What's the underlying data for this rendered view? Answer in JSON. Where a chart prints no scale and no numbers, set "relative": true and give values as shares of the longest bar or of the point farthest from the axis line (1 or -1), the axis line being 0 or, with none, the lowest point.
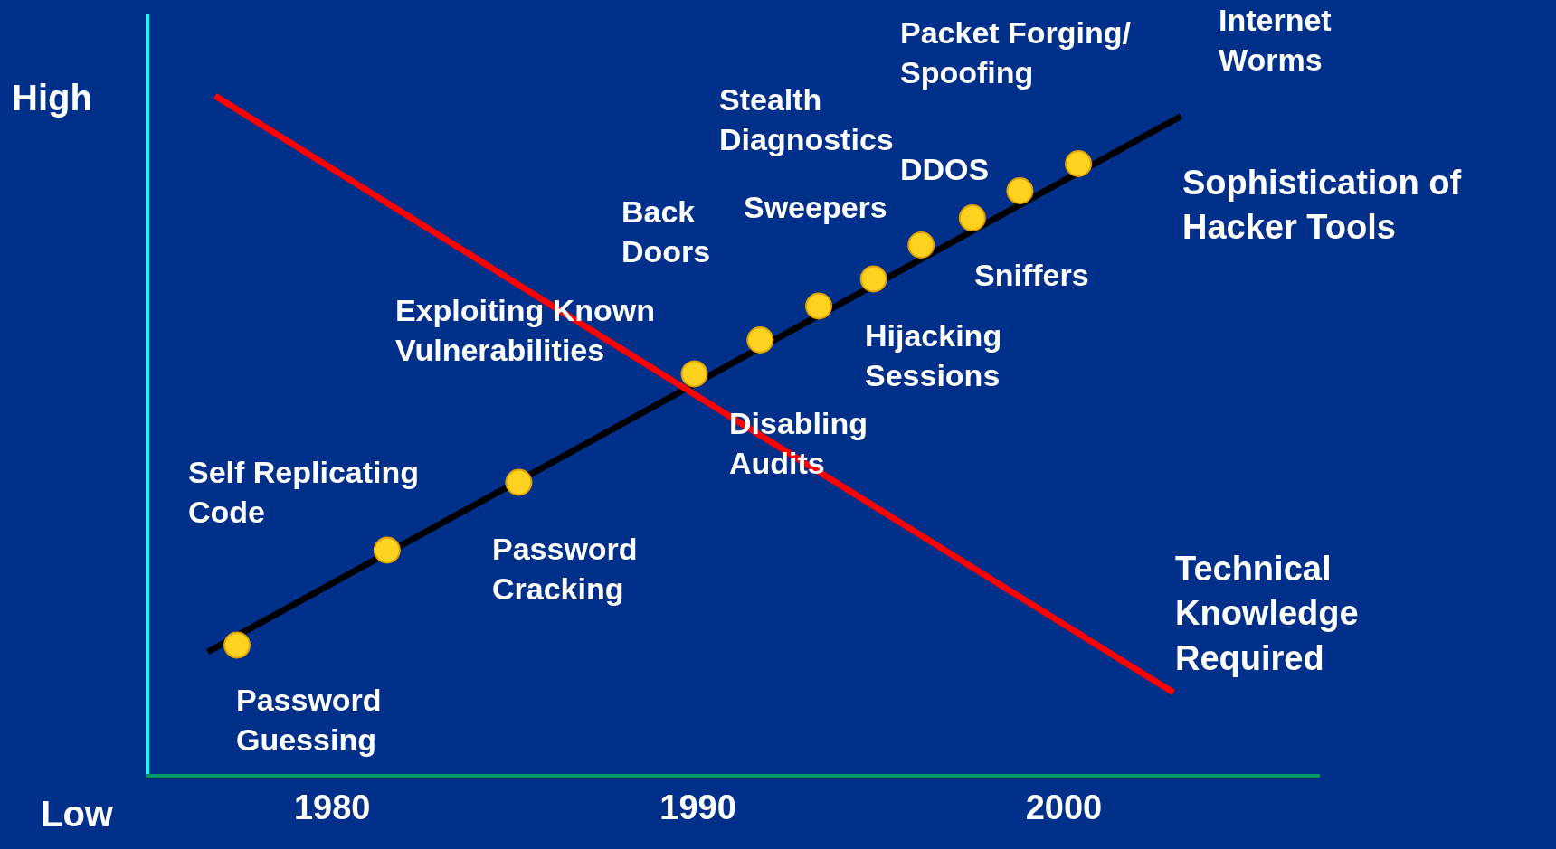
{
  "chart_data": {
    "type": "line",
    "relative": true,
    "xlim": [
      1975,
      2007
    ],
    "xticks": [
      1980,
      1990,
      2000
    ],
    "grid": false,
    "legend": "right",
    "series": [
      {
        "name": "Sophistication of Hacker Tools",
        "color": "#000000",
        "x": [
          1976.6,
          2003.2
        ],
        "values": [
          0.18,
          0.97
        ]
      },
      {
        "name": "Technical Knowledge Required",
        "color": "#ff0000",
        "x": [
          1976.8,
          2003.0
        ],
        "values": [
          1.0,
          0.12
        ]
      },
      {
        "type": "scatter",
        "marker": "circle",
        "color": "#ffd21f",
        "x": [
          1977.4,
          1981.5,
          1985.1,
          1989.9,
          1991.7,
          1993.3,
          1994.8,
          1996.1,
          1997.5,
          1998.8,
          2000.4
        ],
        "values": [
          0.19,
          0.33,
          0.43,
          0.59,
          0.64,
          0.69,
          0.73,
          0.78,
          0.82,
          0.86,
          0.9
        ]
      }
    ],
    "annotations": [
      "High",
      "Password Guessing",
      "Self Replicating Code",
      "Password Cracking",
      "Exploiting Known Vulnerabilities",
      "Disabling Audits",
      "Back Doors",
      "Sweepers",
      "Stealth Diagnostics",
      "Hijacking Sessions",
      "Sniffers",
      "DDOS",
      "Packet Forging/ Spoofing",
      "Internet Worms",
      "Low"
    ]
  }
}
